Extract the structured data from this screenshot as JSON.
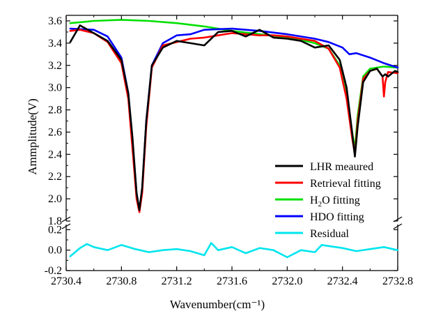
{
  "chart_data": {
    "type": "line",
    "xlabel": "Wavenumber(cm⁻¹)",
    "ylabel": "Ammplitude(V)",
    "x_range": [
      2730.4,
      2732.8
    ],
    "x_ticks": [
      "2730.4",
      "2730.8",
      "2731.2",
      "2731.6",
      "2732.0",
      "2732.4",
      "2732.8"
    ],
    "x_tick_values": [
      2730.4,
      2730.8,
      2731.2,
      2731.6,
      2732.0,
      2732.4,
      2732.8
    ],
    "upper_panel": {
      "ylim": [
        1.8,
        3.65
      ],
      "y_ticks": [
        "1.8",
        "2.0",
        "2.2",
        "2.4",
        "2.6",
        "2.8",
        "3.0",
        "3.2",
        "3.4",
        "3.6"
      ],
      "y_tick_values": [
        1.8,
        2.0,
        2.2,
        2.4,
        2.6,
        2.8,
        3.0,
        3.2,
        3.4,
        3.6
      ]
    },
    "lower_panel": {
      "ylim": [
        -0.2,
        0.25
      ],
      "y_ticks": [
        "0.2",
        "0.0",
        "-0.2"
      ],
      "y_tick_values": [
        0.2,
        0.0,
        -0.2
      ]
    },
    "legend_placement": "lower-right",
    "series": [
      {
        "name": "LHR meaured",
        "legend_label": "LHR meaured",
        "color": "#000000",
        "x": [
          2730.43,
          2730.5,
          2730.6,
          2730.7,
          2730.8,
          2730.85,
          2730.88,
          2730.91,
          2730.93,
          2730.95,
          2730.98,
          2731.02,
          2731.1,
          2731.2,
          2731.3,
          2731.4,
          2731.5,
          2731.6,
          2731.7,
          2731.8,
          2731.9,
          2732.0,
          2732.1,
          2732.2,
          2732.3,
          2732.38,
          2732.43,
          2732.47,
          2732.49,
          2732.51,
          2732.55,
          2732.6,
          2732.65,
          2732.69,
          2732.71,
          2732.73,
          2732.78,
          2732.8
        ],
        "y": [
          3.41,
          3.56,
          3.49,
          3.42,
          3.25,
          2.95,
          2.55,
          2.05,
          1.9,
          2.1,
          2.7,
          3.2,
          3.36,
          3.42,
          3.4,
          3.38,
          3.5,
          3.51,
          3.46,
          3.52,
          3.45,
          3.44,
          3.42,
          3.36,
          3.38,
          3.25,
          3.0,
          2.6,
          2.38,
          2.65,
          3.05,
          3.15,
          3.17,
          3.1,
          3.12,
          3.1,
          3.15,
          3.14
        ]
      },
      {
        "name": "Retrieval fitting",
        "legend_label": "Retrieval fitting",
        "color": "#ff0000",
        "x": [
          2730.43,
          2730.5,
          2730.6,
          2730.7,
          2730.8,
          2730.85,
          2730.88,
          2730.91,
          2730.93,
          2730.95,
          2730.98,
          2731.02,
          2731.1,
          2731.2,
          2731.3,
          2731.4,
          2731.5,
          2731.6,
          2731.7,
          2731.8,
          2731.9,
          2732.0,
          2732.1,
          2732.2,
          2732.3,
          2732.38,
          2732.43,
          2732.47,
          2732.49,
          2732.51,
          2732.55,
          2732.6,
          2732.65,
          2732.69,
          2732.7,
          2732.71,
          2732.73,
          2732.8
        ],
        "y": [
          3.51,
          3.52,
          3.49,
          3.41,
          3.22,
          2.9,
          2.45,
          2.0,
          1.88,
          2.05,
          2.65,
          3.18,
          3.38,
          3.41,
          3.44,
          3.45,
          3.47,
          3.49,
          3.48,
          3.47,
          3.47,
          3.46,
          3.44,
          3.42,
          3.35,
          3.18,
          2.9,
          2.55,
          2.4,
          2.7,
          3.08,
          3.15,
          3.17,
          3.1,
          2.92,
          3.05,
          3.14,
          3.13
        ]
      },
      {
        "name": "H2O fitting",
        "legend_label": "O fitting",
        "legend_prefix": "H",
        "legend_sub": "2",
        "color": "#00e000",
        "x": [
          2730.43,
          2730.6,
          2730.8,
          2731.0,
          2731.2,
          2731.4,
          2731.6,
          2731.8,
          2732.0,
          2732.1,
          2732.2,
          2732.3,
          2732.38,
          2732.43,
          2732.47,
          2732.49,
          2732.51,
          2732.55,
          2732.6,
          2732.7,
          2732.8
        ],
        "y": [
          3.58,
          3.6,
          3.61,
          3.6,
          3.58,
          3.55,
          3.51,
          3.48,
          3.45,
          3.43,
          3.4,
          3.35,
          3.2,
          2.95,
          2.6,
          2.45,
          2.75,
          3.1,
          3.17,
          3.19,
          3.18
        ]
      },
      {
        "name": "HDO fitting",
        "legend_label": "HDO fitting",
        "color": "#0000ff",
        "x": [
          2730.43,
          2730.6,
          2730.7,
          2730.8,
          2730.85,
          2730.88,
          2730.91,
          2730.93,
          2730.95,
          2730.98,
          2731.02,
          2731.1,
          2731.2,
          2731.3,
          2731.4,
          2731.6,
          2731.8,
          2732.0,
          2732.2,
          2732.3,
          2732.4,
          2732.45,
          2732.5,
          2732.6,
          2732.7,
          2732.8
        ],
        "y": [
          3.53,
          3.52,
          3.46,
          3.27,
          2.95,
          2.5,
          2.05,
          1.9,
          2.08,
          2.7,
          3.2,
          3.4,
          3.47,
          3.48,
          3.52,
          3.53,
          3.51,
          3.48,
          3.44,
          3.41,
          3.36,
          3.3,
          3.31,
          3.27,
          3.22,
          3.18
        ]
      },
      {
        "name": "Residual",
        "legend_label": "Residual",
        "color": "#00e5ee",
        "panel": "lower",
        "x": [
          2730.43,
          2730.5,
          2730.55,
          2730.6,
          2730.7,
          2730.8,
          2730.9,
          2731.0,
          2731.1,
          2731.2,
          2731.3,
          2731.4,
          2731.45,
          2731.5,
          2731.6,
          2731.7,
          2731.8,
          2731.9,
          2732.0,
          2732.1,
          2732.2,
          2732.25,
          2732.3,
          2732.4,
          2732.5,
          2732.6,
          2732.7,
          2732.8
        ],
        "y": [
          -0.06,
          0.02,
          0.06,
          0.03,
          0.0,
          0.05,
          0.01,
          -0.02,
          0.0,
          0.01,
          -0.01,
          -0.05,
          0.07,
          0.0,
          0.03,
          -0.03,
          0.02,
          0.0,
          -0.07,
          0.0,
          -0.02,
          0.05,
          0.04,
          0.02,
          -0.01,
          0.01,
          0.03,
          0.0
        ]
      }
    ]
  }
}
